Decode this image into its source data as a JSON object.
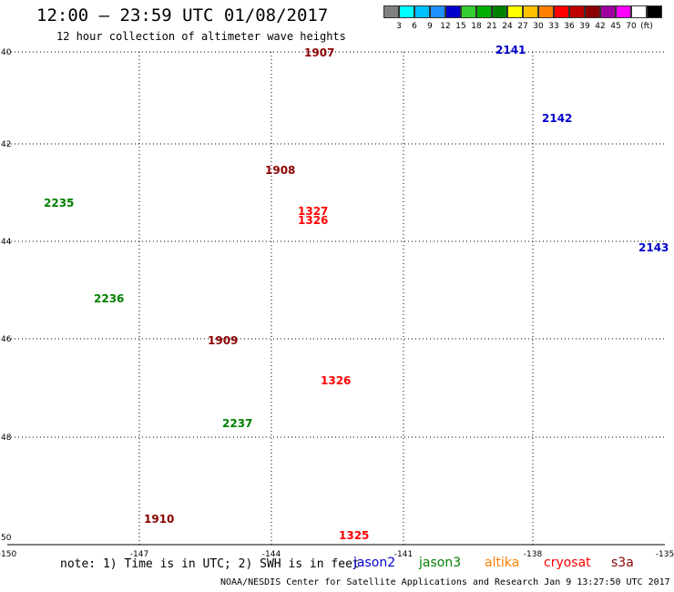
{
  "header": {
    "title": "12:00 – 23:59 UTC 01/08/2017",
    "subtitle": "12 hour collection of altimeter wave heights"
  },
  "scale": {
    "colors": [
      "#808080",
      "#00ffff",
      "#00bfff",
      "#1e90ff",
      "#0000cd",
      "#32cd32",
      "#00b000",
      "#008000",
      "#ffff00",
      "#ffc000",
      "#ff8000",
      "#ff0000",
      "#c00000",
      "#8b0000",
      "#a000a0",
      "#ff00ff",
      "#ffffff",
      "#000000"
    ],
    "ticks": [
      "3",
      "6",
      "9",
      "12",
      "15",
      "18",
      "21",
      "24",
      "27",
      "30",
      "33",
      "36",
      "39",
      "42",
      "45",
      "70"
    ],
    "unit": "(ft)"
  },
  "axes": {
    "y_labels": [
      "40",
      "42",
      "44",
      "46",
      "48",
      "50"
    ],
    "x_labels": [
      "-150",
      "-147",
      "-144",
      "-141",
      "-138",
      "-135"
    ]
  },
  "passes": [
    {
      "label": "1907",
      "color": "#8b0000"
    },
    {
      "label": "1908",
      "color": "#8b0000"
    },
    {
      "label": "1909",
      "color": "#8b0000"
    },
    {
      "label": "1910",
      "color": "#8b0000"
    },
    {
      "label": "2141",
      "color": "#0000cd"
    },
    {
      "label": "2142",
      "color": "#0000cd"
    },
    {
      "label": "2143",
      "color": "#0000cd"
    },
    {
      "label": "2235",
      "color": "#008000"
    },
    {
      "label": "2236",
      "color": "#008000"
    },
    {
      "label": "2237",
      "color": "#008000"
    },
    {
      "label": "1327",
      "color": "#ff0000"
    },
    {
      "label": "1326",
      "color": "#ff0000"
    },
    {
      "label": "1326",
      "color": "#ff0000"
    },
    {
      "label": "1325",
      "color": "#ff0000"
    }
  ],
  "footer": {
    "note": "note: 1) Time is in UTC; 2) SWH is in feet",
    "satellites": [
      {
        "label": "jason2",
        "color": "#0000cd"
      },
      {
        "label": "jason3",
        "color": "#008000"
      },
      {
        "label": "altika",
        "color": "#ff8000"
      },
      {
        "label": "cryosat",
        "color": "#ff0000"
      },
      {
        "label": "s3a",
        "color": "#8b0000"
      }
    ],
    "credit": "NOAA/NESDIS Center for Satellite Applications and Research   Jan  9 13:27:50 UTC 2017"
  }
}
